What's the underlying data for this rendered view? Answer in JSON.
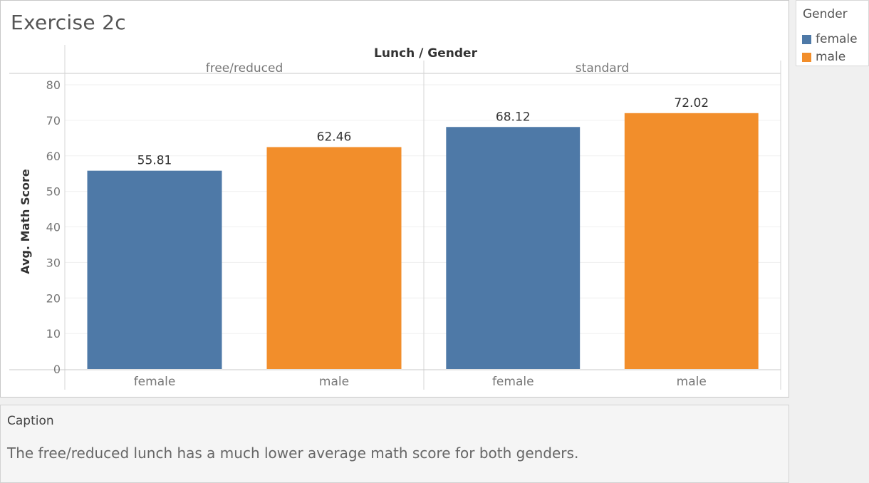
{
  "title": "Exercise 2c",
  "legend": {
    "title": "Gender",
    "items": [
      {
        "label": "female",
        "color": "#4e79a7"
      },
      {
        "label": "male",
        "color": "#f28e2b"
      }
    ]
  },
  "caption": {
    "title": "Caption",
    "text": "The free/reduced lunch has a much lower average math score for both genders."
  },
  "chart_data": {
    "type": "bar",
    "header": "Lunch / Gender",
    "ylabel": "Avg. Math Score",
    "ylim": [
      0,
      80
    ],
    "yticks": [
      0,
      10,
      20,
      30,
      40,
      50,
      60,
      70,
      80
    ],
    "grid": true,
    "legend_position": "top-right",
    "groups": [
      {
        "name": "free/reduced",
        "bars": [
          {
            "category": "female",
            "value": 55.81,
            "value_label": "55.81",
            "color": "#4e79a7"
          },
          {
            "category": "male",
            "value": 62.46,
            "value_label": "62.46",
            "color": "#f28e2b"
          }
        ]
      },
      {
        "name": "standard",
        "bars": [
          {
            "category": "female",
            "value": 68.12,
            "value_label": "68.12",
            "color": "#4e79a7"
          },
          {
            "category": "male",
            "value": 72.02,
            "value_label": "72.02",
            "color": "#f28e2b"
          }
        ]
      }
    ]
  }
}
